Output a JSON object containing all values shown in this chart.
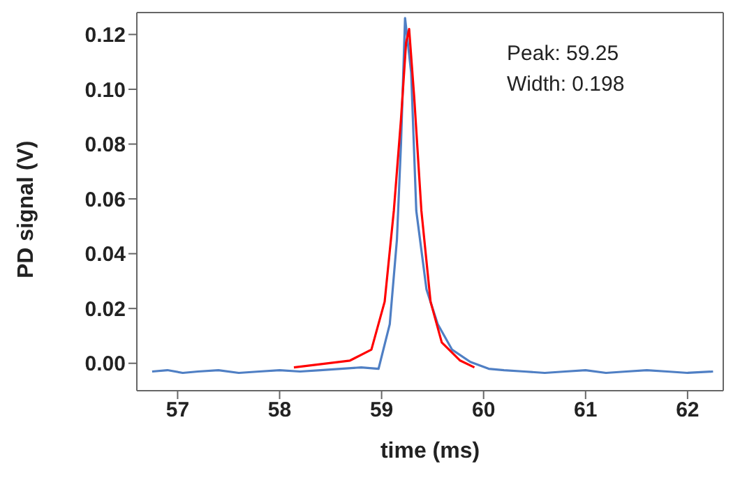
{
  "chart_data": {
    "type": "line",
    "xlabel": "time (ms)",
    "ylabel": "PD signal (V)",
    "annotations": [
      "Peak: 59.25",
      "Width: 0.198"
    ],
    "xlim": [
      56.6,
      62.35
    ],
    "ylim": [
      -0.01,
      0.128
    ],
    "xticks": [
      57,
      58,
      59,
      60,
      61,
      62
    ],
    "yticks": [
      {
        "value": 0,
        "label": "0.00"
      },
      {
        "value": 0.02,
        "label": "0.02"
      },
      {
        "value": 0.04,
        "label": "0.04"
      },
      {
        "value": 0.06,
        "label": "0.06"
      },
      {
        "value": 0.08,
        "label": "0.08"
      },
      {
        "value": 0.1,
        "label": "0.10"
      },
      {
        "value": 0.12,
        "label": "0.12"
      }
    ],
    "grid": false,
    "marker": "none",
    "line_style": "solid",
    "series": [
      {
        "color": "#4f7fc4",
        "x": [
          56.75,
          56.9,
          57.05,
          57.2,
          57.4,
          57.6,
          57.8,
          58.0,
          58.2,
          58.4,
          58.6,
          58.8,
          58.97,
          59.08,
          59.15,
          59.19,
          59.23,
          59.29,
          59.34,
          59.44,
          59.55,
          59.69,
          59.87,
          60.05,
          60.2,
          60.4,
          60.6,
          60.8,
          61.0,
          61.2,
          61.4,
          61.6,
          61.8,
          62.0,
          62.25
        ],
        "values": [
          -0.003,
          -0.0025,
          -0.0035,
          -0.003,
          -0.0025,
          -0.0035,
          -0.003,
          -0.0025,
          -0.003,
          -0.0025,
          -0.002,
          -0.0015,
          -0.002,
          0.0143,
          0.045,
          0.08,
          0.126,
          0.106,
          0.0557,
          0.027,
          0.0143,
          0.005,
          0.0005,
          -0.002,
          -0.0025,
          -0.003,
          -0.0035,
          -0.003,
          -0.0025,
          -0.0035,
          -0.003,
          -0.0025,
          -0.003,
          -0.0035,
          -0.003
        ]
      },
      {
        "color": "#ff0000",
        "x": [
          58.14,
          58.69,
          58.9,
          59.03,
          59.12,
          59.19,
          59.24,
          59.27,
          59.32,
          59.39,
          59.48,
          59.59,
          59.77,
          59.91
        ],
        "values": [
          -0.0015,
          0.001,
          0.005,
          0.0225,
          0.0557,
          0.089,
          0.117,
          0.122,
          0.097,
          0.0557,
          0.0225,
          0.0076,
          0.001,
          -0.0015
        ]
      }
    ]
  }
}
